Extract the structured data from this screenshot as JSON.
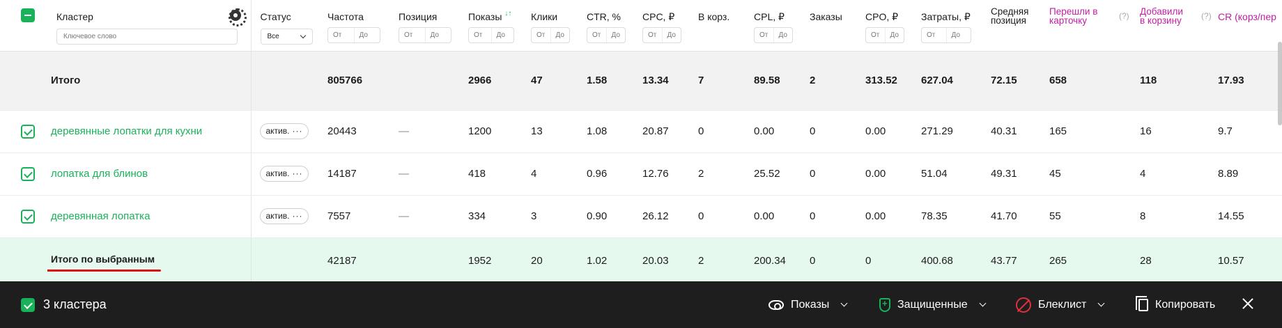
{
  "header": {
    "cluster": "Кластер",
    "keyword_placeholder": "Ключевое слово",
    "status": "Статус",
    "status_value": "Все",
    "columns": [
      "Частота",
      "Позиция",
      "Показы",
      "Клики",
      "CTR, %",
      "CPC, ₽",
      "В корз.",
      "CPL, ₽",
      "Заказы",
      "CPO, ₽",
      "Затраты, ₽"
    ],
    "avg_position": "Средняя позиция",
    "to_card": "Перешли в карточку",
    "to_cart": "Добавили в корзину",
    "cr": "CR (корз/пер",
    "help": "(?)",
    "range_from": "От",
    "range_to": "До",
    "sort_glyph": "↓↑"
  },
  "total": {
    "label": "Итого",
    "values": [
      "805766",
      "",
      "2966",
      "47",
      "1.58",
      "13.34",
      "7",
      "89.58",
      "2",
      "313.52",
      "627.04",
      "72.15",
      "658",
      "118",
      "17.93"
    ]
  },
  "rows": [
    {
      "keyword": "деревянные лопатки для кухни",
      "status": "актив.",
      "values": [
        "20443",
        "—",
        "1200",
        "13",
        "1.08",
        "20.87",
        "0",
        "0.00",
        "0",
        "0.00",
        "271.29",
        "40.31",
        "165",
        "16",
        "9.7"
      ]
    },
    {
      "keyword": "лопатка для блинов",
      "status": "актив.",
      "values": [
        "14187",
        "—",
        "418",
        "4",
        "0.96",
        "12.76",
        "2",
        "25.52",
        "0",
        "0.00",
        "51.04",
        "49.31",
        "45",
        "4",
        "8.89"
      ]
    },
    {
      "keyword": "деревянная лопатка",
      "status": "актив.",
      "values": [
        "7557",
        "—",
        "334",
        "3",
        "0.90",
        "26.12",
        "0",
        "0.00",
        "0",
        "0.00",
        "78.35",
        "41.70",
        "55",
        "8",
        "14.55"
      ]
    }
  ],
  "selected_total": {
    "label": "Итого по выбранным",
    "values": [
      "42187",
      "",
      "1952",
      "20",
      "1.02",
      "20.03",
      "2",
      "200.34",
      "0",
      "0",
      "400.68",
      "43.77",
      "265",
      "28",
      "10.57"
    ]
  },
  "status_dots": "···",
  "action_bar": {
    "selected_count": "3 кластера",
    "shows": "Показы",
    "protected": "Защищенные",
    "blacklist": "Блеклист",
    "copy": "Копировать"
  },
  "colors": {
    "accent_green": "#19b25a",
    "pink": "#c41da2",
    "underline_red": "#e01010",
    "bar_bg": "#1e1e1e"
  }
}
